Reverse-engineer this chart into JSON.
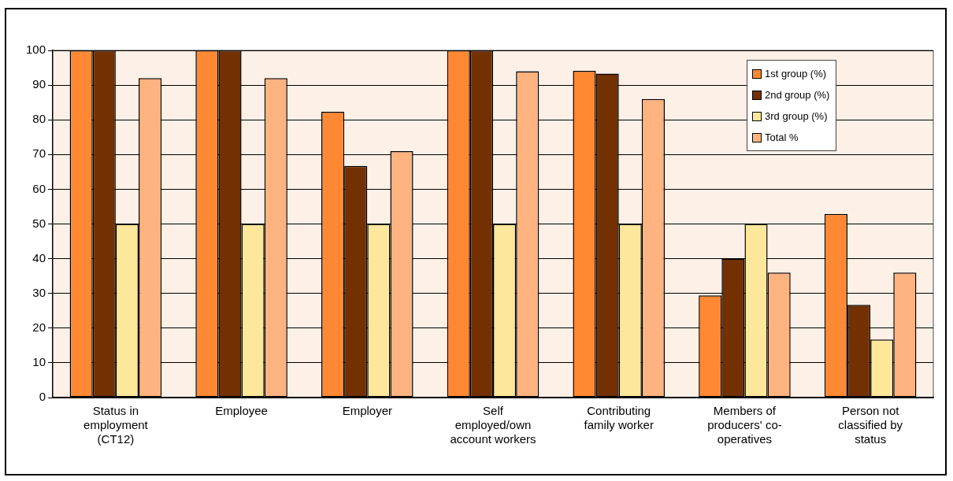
{
  "chart_data": {
    "type": "bar",
    "categories": [
      "Status in employment (CT12)",
      "Employee",
      "Employer",
      "Self employed/own account workers",
      "Contributing family worker",
      "Members of producers' co-operatives",
      "Person not classified by status"
    ],
    "series": [
      {
        "name": "1st group (%)",
        "color": "#ff8833",
        "values": [
          100,
          100,
          82.3,
          100,
          94.1,
          29.4,
          52.9
        ]
      },
      {
        "name": "2nd group (%)",
        "color": "#733000",
        "values": [
          100,
          100,
          66.7,
          100,
          93.3,
          40,
          26.7
        ]
      },
      {
        "name": "3rd group (%)",
        "color": "#fce79a",
        "values": [
          50,
          50,
          50,
          50,
          50,
          50,
          16.7
        ]
      },
      {
        "name": "Total %",
        "color": "#ffb380",
        "values": [
          92,
          92,
          71,
          94,
          86,
          36,
          36
        ]
      }
    ],
    "ylim": [
      0,
      100
    ],
    "yticks": [
      0,
      10,
      20,
      30,
      40,
      50,
      60,
      70,
      80,
      90,
      100
    ],
    "grid": "y",
    "legend": "top right"
  }
}
